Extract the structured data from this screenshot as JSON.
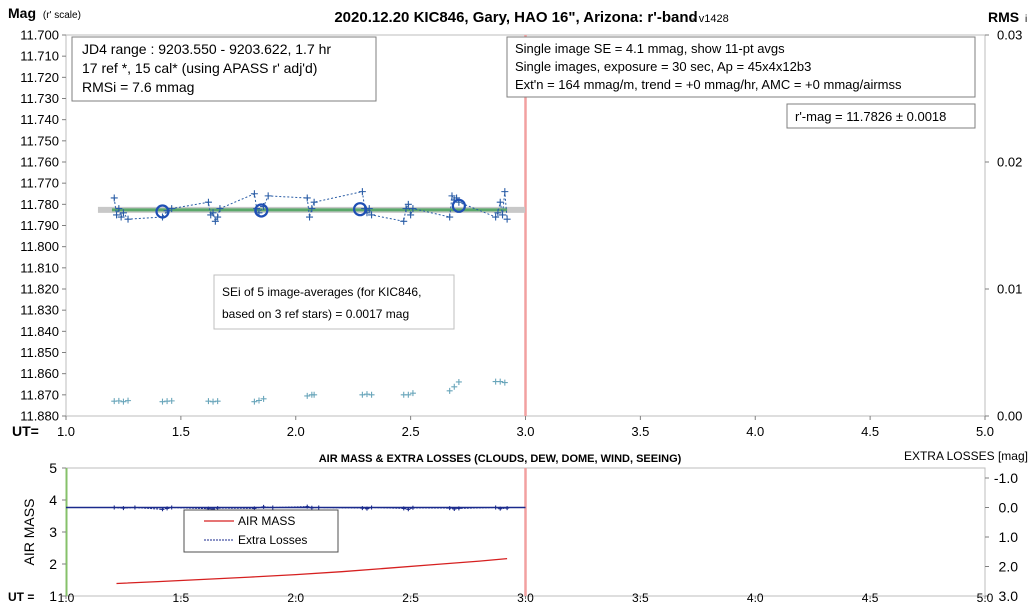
{
  "chart_data": [
    {
      "type": "scatter",
      "title": "2020.12.20 KIC846, Gary, HAO 16\", Arizona: r'-band",
      "version": "- v1428",
      "ylabel_main": "Mag",
      "ylabel_suffix": "(r' scale)",
      "y2label_main": "RMS",
      "y2label_suffix": "i",
      "xlabel": "UT=",
      "xlim": [
        1.0,
        5.0
      ],
      "ylim": [
        11.7,
        11.88
      ],
      "y2lim": [
        0.0,
        0.03
      ],
      "x_ticks": [
        "1.0",
        "1.5",
        "2.0",
        "2.5",
        "3.0",
        "3.5",
        "4.0",
        "4.5",
        "5.0"
      ],
      "y_ticks": [
        "11.700",
        "11.710",
        "11.720",
        "11.730",
        "11.740",
        "11.750",
        "11.760",
        "11.770",
        "11.780",
        "11.790",
        "11.800",
        "11.810",
        "11.820",
        "11.830",
        "11.840",
        "11.850",
        "11.860",
        "11.870",
        "11.880"
      ],
      "y2_ticks": [
        "0.03",
        "0.02",
        "0.01",
        "0.00"
      ],
      "vertical_marker_x": 3.0,
      "mean_mag": 11.7826,
      "trend_x_range": [
        1.2,
        2.92
      ],
      "info_box_left": [
        "JD4 range : 9203.550 - 9203.622, 1.7  hr",
        "17 ref *, 15 cal* (using APASS r' adj'd)",
        "RMSi = 7.6 mmag"
      ],
      "info_box_right": [
        "Single image SE = 4.1 mmag, show  11-pt avgs",
        "Single images, exposure = 30 sec, Ap = 45x4x12b3",
        "Ext'n = 164 mmag/m, trend =  +0 mmag/hr, AMC = +0 mmag/airmss"
      ],
      "result_label": "r'-mag = 11.7826 ± 0.0018",
      "sei_label": [
        "SEi of 5 image-averages (for KIC846,",
        "based on 3 ref stars) = 0.0017 mag"
      ],
      "series": [
        {
          "x": [
            1.21,
            1.22,
            1.23,
            1.24,
            1.25,
            1.27,
            1.42,
            1.44,
            1.46,
            1.62,
            1.63,
            1.64,
            1.65,
            1.66,
            1.67,
            1.82,
            1.83,
            1.84,
            1.86,
            1.88,
            2.05,
            2.06,
            2.07,
            2.08,
            2.29,
            2.3,
            2.31,
            2.32,
            2.33,
            2.47,
            2.48,
            2.49,
            2.5,
            2.51,
            2.67,
            2.68,
            2.69,
            2.7,
            2.71,
            2.87,
            2.88,
            2.89,
            2.9,
            2.91,
            2.92
          ],
          "y": [
            11.777,
            11.785,
            11.782,
            11.786,
            11.784,
            11.787,
            11.786,
            11.783,
            11.782,
            11.779,
            11.785,
            11.784,
            11.788,
            11.786,
            11.782,
            11.775,
            11.782,
            11.784,
            11.781,
            11.776,
            11.777,
            11.786,
            11.782,
            11.779,
            11.774,
            11.782,
            11.784,
            11.782,
            11.785,
            11.788,
            11.782,
            11.78,
            11.785,
            11.782,
            11.786,
            11.776,
            11.778,
            11.777,
            11.779,
            11.786,
            11.784,
            11.779,
            11.785,
            11.774,
            11.787
          ]
        },
        {
          "x": [
            1.42,
            1.85,
            2.28,
            2.71
          ],
          "y": [
            11.7834,
            11.7829,
            11.7823,
            11.7807
          ]
        },
        {
          "x": [
            1.21,
            1.23,
            1.25,
            1.27,
            1.42,
            1.44,
            1.46,
            1.62,
            1.64,
            1.66,
            1.82,
            1.84,
            1.86,
            2.05,
            2.07,
            2.08,
            2.29,
            2.31,
            2.33,
            2.47,
            2.49,
            2.51,
            2.67,
            2.69,
            2.71,
            2.87,
            2.89,
            2.91
          ],
          "y2": [
            0.00117,
            0.00119,
            0.00113,
            0.00121,
            0.00113,
            0.00117,
            0.00119,
            0.00117,
            0.00113,
            0.00117,
            0.00113,
            0.00122,
            0.00135,
            0.00158,
            0.00167,
            0.00167,
            0.00167,
            0.00172,
            0.00167,
            0.00167,
            0.00167,
            0.0018,
            0.00198,
            0.0023,
            0.00268,
            0.00271,
            0.00271,
            0.00263
          ]
        }
      ]
    },
    {
      "type": "line",
      "title": "AIR MASS & EXTRA LOSSES (CLOUDS, DEW, DOME, WIND, SEEING)",
      "ylabel": "AIR MASS",
      "y2label": "EXTRA LOSSES [mag]",
      "xlabel": "UT =",
      "xlim": [
        1.0,
        5.0
      ],
      "ylim": [
        1,
        5
      ],
      "y2lim": [
        3.0,
        -1.0
      ],
      "x_ticks": [
        "1.0",
        "1.5",
        "2.0",
        "2.5",
        "3.0",
        "3.5",
        "4.0",
        "4.5",
        "5.0"
      ],
      "y_ticks": [
        "5",
        "4",
        "3",
        "2",
        "1"
      ],
      "y2_ticks": [
        "-1.0",
        "0.0",
        "1.0",
        "2.0",
        "3.0"
      ],
      "vertical_marker_x": 3.0,
      "legend": [
        "AIR MASS",
        "Extra Losses"
      ],
      "series": [
        {
          "name": "AIR MASS",
          "x": [
            1.22,
            1.4,
            1.6,
            1.8,
            2.0,
            2.2,
            2.4,
            2.6,
            2.8,
            2.92
          ],
          "y": [
            1.39,
            1.45,
            1.52,
            1.59,
            1.67,
            1.76,
            1.87,
            1.98,
            2.09,
            2.17
          ]
        },
        {
          "name": "Extra Losses",
          "x": [
            1.21,
            1.25,
            1.3,
            1.42,
            1.44,
            1.46,
            1.62,
            1.64,
            1.66,
            1.82,
            1.86,
            1.9,
            2.05,
            2.07,
            2.1,
            2.29,
            2.31,
            2.33,
            2.47,
            2.49,
            2.51,
            2.67,
            2.69,
            2.71,
            2.87,
            2.89,
            2.92
          ],
          "y2": [
            0.0,
            0.02,
            0.0,
            0.06,
            0.03,
            0.0,
            0.04,
            0.05,
            0.02,
            0.03,
            -0.02,
            0.0,
            -0.03,
            0.01,
            0.0,
            0.02,
            0.04,
            0.0,
            0.03,
            0.06,
            0.01,
            0.02,
            0.05,
            0.03,
            0.0,
            0.04,
            0.02
          ]
        }
      ]
    }
  ],
  "colors": {
    "marker_line": "#f2a0a0",
    "trend_band": "#c8c8c8",
    "trend_line": "#5aa86a",
    "target": "#2a5da6",
    "target_circle": "#1f4fb4",
    "rms": "#6aa6bb",
    "air_mass": "#d62020",
    "extra_losses": "#1a2a8c",
    "left_axis_line": "#86c16a"
  }
}
